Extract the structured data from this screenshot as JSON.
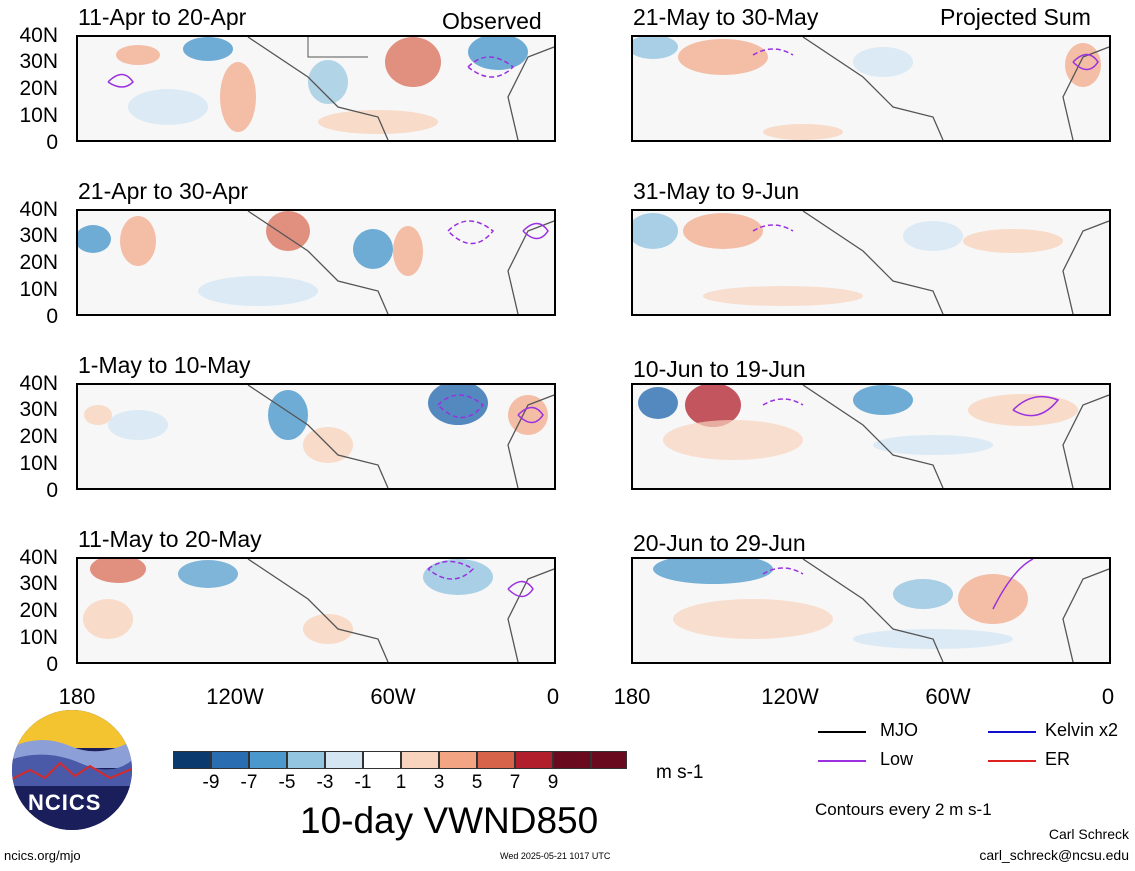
{
  "panels_left": [
    {
      "title": "11-Apr to 20-Apr",
      "tag": "Observed"
    },
    {
      "title": "21-Apr to 30-Apr",
      "tag": ""
    },
    {
      "title": "1-May to 10-May",
      "tag": ""
    },
    {
      "title": "11-May to 20-May",
      "tag": ""
    }
  ],
  "panels_right": [
    {
      "title": "21-May to 30-May",
      "tag": "Projected Sum"
    },
    {
      "title": "31-May to 9-Jun",
      "tag": ""
    },
    {
      "title": "10-Jun to 19-Jun",
      "tag": ""
    },
    {
      "title": "20-Jun to 29-Jun",
      "tag": ""
    }
  ],
  "y_ticks": [
    "40N",
    "30N",
    "20N",
    "10N",
    "0"
  ],
  "x_ticks": [
    "180",
    "120W",
    "60W",
    "0"
  ],
  "legend": {
    "mjo": "MJO",
    "kelvin": "Kelvin x2",
    "low": "Low",
    "er": "ER",
    "colors": {
      "mjo": "#000000",
      "kelvin": "#1010cc",
      "low": "#9b30e0",
      "er": "#dd2020"
    }
  },
  "colorbar": {
    "labels": [
      "-9",
      "-7",
      "-5",
      "-3",
      "-1",
      "1",
      "3",
      "5",
      "7",
      "9"
    ],
    "colors": [
      "#0b3a6e",
      "#2a6db0",
      "#4b98cc",
      "#93c4e0",
      "#d3e6f2",
      "#ffffff",
      "#f8d3bd",
      "#f2a483",
      "#d7634b",
      "#b11f2c",
      "#6a0a1f"
    ],
    "units": "m s-1"
  },
  "main_title": "10-day VWND850",
  "contours_note": "Contours every 2 m s-1",
  "logo_text": "NCICS",
  "url": "ncics.org/mjo",
  "timestamp": "Wed 2025-05-21 1017 UTC",
  "author": "Carl Schreck",
  "email": "carl_schreck@ncsu.edu",
  "chart_data": [
    {
      "type": "heatmap",
      "title": "11-Apr to 20-Apr",
      "subtitle": "Observed",
      "variable": "10-day VWND850",
      "units": "m s-1",
      "x_ticks": [
        "180",
        "120W",
        "60W",
        "0"
      ],
      "y_ticks": [
        "40N",
        "30N",
        "20N",
        "10N",
        "0"
      ],
      "xlim": [
        180,
        0
      ],
      "ylim": [
        0,
        40
      ]
    },
    {
      "type": "heatmap",
      "title": "21-Apr to 30-Apr",
      "variable": "10-day VWND850",
      "units": "m s-1",
      "xlim": [
        180,
        0
      ],
      "ylim": [
        0,
        40
      ]
    },
    {
      "type": "heatmap",
      "title": "1-May to 10-May",
      "variable": "10-day VWND850",
      "units": "m s-1",
      "xlim": [
        180,
        0
      ],
      "ylim": [
        0,
        40
      ]
    },
    {
      "type": "heatmap",
      "title": "11-May to 20-May",
      "variable": "10-day VWND850",
      "units": "m s-1",
      "xlim": [
        180,
        0
      ],
      "ylim": [
        0,
        40
      ]
    },
    {
      "type": "heatmap",
      "title": "21-May to 30-May",
      "subtitle": "Projected Sum",
      "variable": "10-day VWND850",
      "units": "m s-1",
      "xlim": [
        180,
        0
      ],
      "ylim": [
        0,
        40
      ]
    },
    {
      "type": "heatmap",
      "title": "31-May to 9-Jun",
      "variable": "10-day VWND850",
      "units": "m s-1",
      "xlim": [
        180,
        0
      ],
      "ylim": [
        0,
        40
      ]
    },
    {
      "type": "heatmap",
      "title": "10-Jun to 19-Jun",
      "variable": "10-day VWND850",
      "units": "m s-1",
      "xlim": [
        180,
        0
      ],
      "ylim": [
        0,
        40
      ]
    },
    {
      "type": "heatmap",
      "title": "20-Jun to 29-Jun",
      "variable": "10-day VWND850",
      "units": "m s-1",
      "xlim": [
        180,
        0
      ],
      "ylim": [
        0,
        40
      ]
    }
  ]
}
